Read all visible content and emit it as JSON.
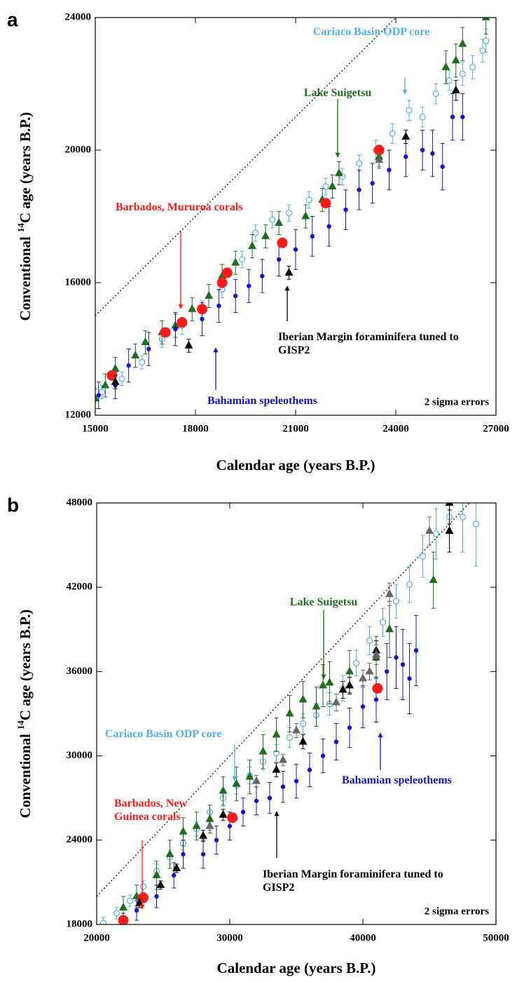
{
  "chart_data": [
    {
      "type": "scatter",
      "panel": "a",
      "xlabel": "Calendar age (years B.P.)",
      "ylabel": {
        "before": "Conventional",
        "superscript": "14",
        "after": "C age (years B.P.)"
      },
      "note": "2 sigma errors",
      "xlim": [
        15000,
        27000
      ],
      "xticks": [
        15000,
        18000,
        21000,
        24000,
        27000
      ],
      "ylim": [
        12000,
        24000
      ],
      "yticks": [
        12000,
        16000,
        20000,
        24000
      ],
      "series": [
        {
          "name": "Cariaco Basin ODP core",
          "color": "#4fb0f0",
          "marker": "circle",
          "filled": false,
          "x": [
            15200,
            15800,
            16400,
            17000,
            17600,
            18200,
            18800,
            19400,
            19800,
            20300,
            20800,
            21400,
            21900,
            22400,
            22900,
            23400,
            23900,
            24400,
            24800,
            25200,
            25600,
            26000,
            26300,
            26600,
            26700
          ],
          "values": [
            12700,
            13100,
            13600,
            14300,
            14700,
            15200,
            15800,
            16700,
            17500,
            17900,
            18100,
            18500,
            18900,
            19200,
            19600,
            20000,
            20500,
            21200,
            21000,
            21700,
            22100,
            22300,
            22500,
            23000,
            23300
          ],
          "errors": [
            200,
            200,
            200,
            250,
            250,
            250,
            250,
            250,
            250,
            250,
            250,
            250,
            250,
            250,
            250,
            300,
            300,
            300,
            300,
            300,
            300,
            350,
            350,
            350,
            350
          ]
        },
        {
          "name": "Lake Suigetsu",
          "color": "#1e6e1e",
          "marker": "triangle",
          "filled": true,
          "x": [
            15000,
            15300,
            15600,
            16200,
            16500,
            17000,
            17400,
            17900,
            18400,
            18800,
            19200,
            19700,
            20100,
            20500,
            21300,
            21800,
            22100,
            22300,
            23500,
            25500,
            25800,
            26000,
            26700
          ],
          "values": [
            12500,
            12900,
            13400,
            13800,
            14200,
            14500,
            14700,
            15200,
            15600,
            16200,
            16600,
            17100,
            17400,
            17800,
            18000,
            18500,
            18900,
            19300,
            19800,
            22500,
            22700,
            23200,
            24000
          ],
          "errors": [
            300,
            350,
            350,
            350,
            350,
            350,
            350,
            350,
            350,
            350,
            350,
            350,
            350,
            350,
            350,
            350,
            350,
            350,
            350,
            500,
            500,
            500,
            500
          ]
        },
        {
          "name": "Bahamian speleothems",
          "color": "#1414c8",
          "marker": "dot",
          "filled": true,
          "x": [
            15100,
            15600,
            16000,
            16600,
            17400,
            18200,
            18700,
            19200,
            19600,
            20000,
            20500,
            21000,
            21500,
            22000,
            22500,
            22900,
            23300,
            23800,
            24300,
            24800,
            25100,
            25400,
            25700,
            26000
          ],
          "values": [
            12600,
            12900,
            13500,
            14000,
            14600,
            14900,
            15300,
            15600,
            15900,
            16200,
            16700,
            17000,
            17400,
            17700,
            18200,
            18800,
            19000,
            19400,
            19800,
            20000,
            19900,
            19500,
            21000,
            21000
          ],
          "errors": [
            400,
            400,
            500,
            500,
            500,
            500,
            500,
            500,
            500,
            500,
            500,
            600,
            600,
            600,
            600,
            600,
            600,
            600,
            600,
            600,
            700,
            700,
            700,
            700
          ]
        },
        {
          "name": "Barbados, Mururoa corals",
          "color": "#ff1a1a",
          "marker": "big",
          "filled": true,
          "x": [
            15500,
            17100,
            17600,
            18200,
            18800,
            18950,
            20600,
            21900,
            23500
          ],
          "values": [
            13200,
            14500,
            14800,
            15200,
            16000,
            16300,
            17200,
            18400,
            20000
          ]
        },
        {
          "name": "Iberian Margin foraminifera tuned to GISP2",
          "color": "#000000",
          "marker": "triangle",
          "filled": true,
          "x": [
            15600,
            17800,
            20800,
            24300,
            25800
          ],
          "values": [
            13000,
            14100,
            16300,
            20400,
            21800
          ],
          "errors": [
            200,
            200,
            200,
            200,
            300
          ]
        },
        {
          "color": "#666666",
          "marker": "triangle",
          "filled": true,
          "x": [
            23500
          ],
          "values": [
            19700
          ],
          "errors": [
            200
          ]
        }
      ]
    },
    {
      "type": "scatter",
      "panel": "b",
      "xlabel": "Calendar age (years B.P.)",
      "ylabel": {
        "before": "Conventional",
        "superscript": "14",
        "after": "C age (years B.P.)"
      },
      "note": "2 sigma errors",
      "xlim": [
        20000,
        50000
      ],
      "xticks": [
        20000,
        30000,
        40000,
        50000
      ],
      "ylim": [
        18000,
        48000
      ],
      "yticks": [
        18000,
        24000,
        30000,
        36000,
        42000,
        48000
      ],
      "series": [
        {
          "name": "Cariaco Basin ODP core",
          "color": "#4fb0f0",
          "marker": "circle",
          "filled": false,
          "x": [
            20500,
            21500,
            22500,
            23500,
            24500,
            25500,
            26500,
            27500,
            28500,
            29500,
            30500,
            31500,
            32500,
            33500,
            34500,
            35500,
            36500,
            37500,
            38500,
            39500,
            40500,
            41500,
            42500,
            43500,
            44500,
            45500,
            46500,
            47500,
            48500
          ],
          "values": [
            18100,
            18800,
            19700,
            20700,
            21800,
            22800,
            23800,
            24800,
            26000,
            27000,
            27900,
            28600,
            29600,
            30200,
            31300,
            32300,
            32900,
            33700,
            34800,
            36600,
            38200,
            39500,
            41000,
            42200,
            44200,
            45800,
            47000,
            47000,
            46500
          ],
          "errors": [
            400,
            400,
            400,
            400,
            500,
            500,
            500,
            500,
            500,
            600,
            600,
            600,
            600,
            600,
            700,
            700,
            800,
            800,
            900,
            900,
            1000,
            1000,
            1200,
            1300,
            1500,
            1800,
            2200,
            2500,
            3000
          ]
        },
        {
          "name": "Lake Suigetsu",
          "color": "#1e6e1e",
          "marker": "triangle",
          "filled": true,
          "x": [
            22000,
            23000,
            24500,
            25500,
            26500,
            27500,
            28500,
            29500,
            30500,
            31500,
            32500,
            33500,
            34500,
            35500,
            36500,
            37000,
            37500,
            39000,
            41000,
            42000,
            45300
          ],
          "values": [
            19200,
            20000,
            21500,
            23000,
            24600,
            25000,
            25500,
            27500,
            28000,
            28500,
            30300,
            31500,
            33000,
            34000,
            33500,
            35000,
            35200,
            36000,
            37000,
            39000,
            42500
          ],
          "errors": [
            800,
            800,
            1000,
            1000,
            1000,
            1000,
            1000,
            1000,
            1200,
            1200,
            1200,
            1200,
            1300,
            1300,
            1400,
            1500,
            1500,
            1500,
            1500,
            2000,
            2000
          ]
        },
        {
          "name": "Bahamian speleothems",
          "color": "#1414c8",
          "marker": "dot",
          "filled": true,
          "x": [
            22000,
            23000,
            24500,
            25800,
            26500,
            28000,
            29000,
            30000,
            31000,
            32000,
            33000,
            34000,
            35000,
            36000,
            37000,
            38000,
            39000,
            40000,
            41000,
            41800,
            42500,
            43000,
            43500,
            44000
          ],
          "values": [
            18200,
            19000,
            20000,
            21500,
            23000,
            23000,
            24000,
            25000,
            26000,
            26800,
            27000,
            27800,
            28200,
            29000,
            30000,
            31000,
            32000,
            33500,
            34000,
            36000,
            37000,
            36500,
            35500,
            37500
          ],
          "errors": [
            600,
            700,
            800,
            900,
            1000,
            1000,
            1000,
            1000,
            1000,
            1000,
            1100,
            1100,
            1200,
            1200,
            1200,
            1300,
            1400,
            1500,
            1600,
            2000,
            2200,
            2500,
            2500,
            2500
          ]
        },
        {
          "name": "Barbados, New Guinea corals",
          "color": "#ff1a1a",
          "marker": "big",
          "filled": true,
          "x": [
            22000,
            23500,
            30200,
            41100
          ],
          "values": [
            18300,
            19900,
            25600,
            34800
          ]
        },
        {
          "name": "Iberian Margin foraminifera tuned to GISP2",
          "color": "#000000",
          "marker": "triangle",
          "filled": true,
          "x": [
            23200,
            24800,
            26000,
            28000,
            29500,
            33500,
            35500,
            38500,
            39000,
            41000,
            46500,
            46500
          ],
          "values": [
            19500,
            20800,
            22000,
            24300,
            25800,
            29000,
            31000,
            34700,
            35000,
            37500,
            46000,
            48000
          ],
          "errors": [
            300,
            300,
            300,
            400,
            400,
            500,
            500,
            600,
            600,
            700,
            1500,
            1500
          ]
        },
        {
          "color": "#666666",
          "marker": "triangle",
          "filled": true,
          "x": [
            28500,
            32000,
            34000,
            35000,
            38000,
            40000,
            40500,
            41000,
            42000,
            45000
          ],
          "values": [
            25000,
            28200,
            29700,
            31800,
            33800,
            35500,
            36000,
            37200,
            41500,
            46000
          ],
          "errors": [
            300,
            400,
            400,
            500,
            600,
            600,
            600,
            700,
            800,
            1000
          ]
        }
      ]
    }
  ]
}
